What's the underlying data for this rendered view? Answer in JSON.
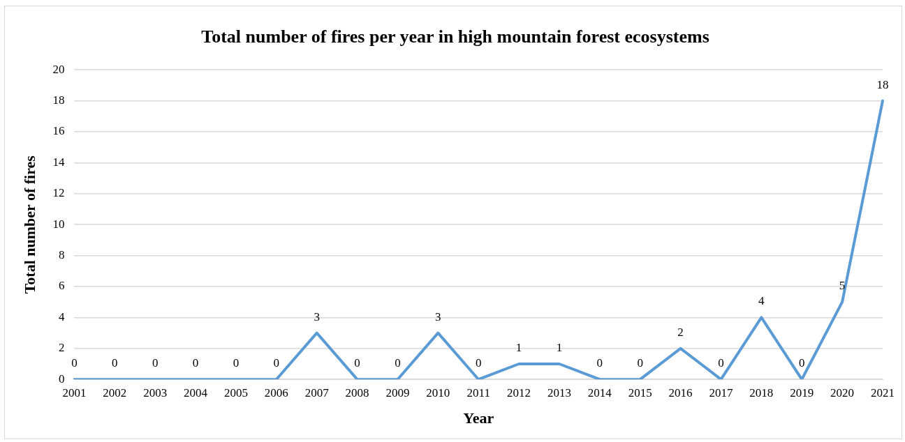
{
  "chart_data": {
    "type": "line",
    "title": "Total number of fires per year in high mountain forest ecosystems",
    "xlabel": "Year",
    "ylabel": "Total number of fires",
    "categories": [
      "2001",
      "2002",
      "2003",
      "2004",
      "2005",
      "2006",
      "2007",
      "2008",
      "2009",
      "2010",
      "2011",
      "2012",
      "2013",
      "2014",
      "2015",
      "2016",
      "2017",
      "2018",
      "2019",
      "2020",
      "2021"
    ],
    "series": [
      {
        "color": "#5b9bd5",
        "values": [
          0,
          0,
          0,
          0,
          0,
          0,
          3,
          0,
          0,
          3,
          0,
          1,
          1,
          0,
          0,
          2,
          0,
          4,
          0,
          5,
          18
        ]
      }
    ],
    "ylim": [
      0,
      20
    ],
    "yticks": [
      0,
      2,
      4,
      6,
      8,
      10,
      12,
      14,
      16,
      18,
      20
    ],
    "grid": "y",
    "legend": false,
    "marker": "none",
    "line_style": "solid",
    "data_labels": true
  }
}
